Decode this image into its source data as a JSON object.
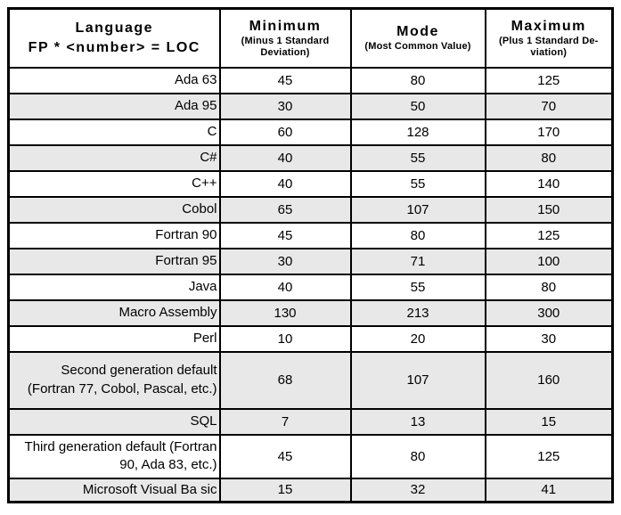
{
  "chart_data": {
    "type": "table",
    "columns": [
      {
        "title": "Language",
        "subtitle": "FP * <number> = LOC"
      },
      {
        "title": "Minimum",
        "subtitle": "(Minus 1 Standard Deviation)"
      },
      {
        "title": "Mode",
        "subtitle": "(Most Common Value)"
      },
      {
        "title": "Maximum",
        "subtitle": "(Plus 1 Standard De-viation)"
      }
    ],
    "rows": [
      {
        "language": "Ada 63",
        "minimum": "45",
        "mode": "80",
        "maximum": "125",
        "shaded": false
      },
      {
        "language": "Ada 95",
        "minimum": "30",
        "mode": "50",
        "maximum": "70",
        "shaded": true
      },
      {
        "language": "C",
        "minimum": "60",
        "mode": "128",
        "maximum": "170",
        "shaded": false
      },
      {
        "language": "C#",
        "minimum": "40",
        "mode": "55",
        "maximum": "80",
        "shaded": true
      },
      {
        "language": "C++",
        "minimum": "40",
        "mode": "55",
        "maximum": "140",
        "shaded": false
      },
      {
        "language": "Cobol",
        "minimum": "65",
        "mode": "107",
        "maximum": "150",
        "shaded": true
      },
      {
        "language": "Fortran 90",
        "minimum": "45",
        "mode": "80",
        "maximum": "125",
        "shaded": false
      },
      {
        "language": "Fortran 95",
        "minimum": "30",
        "mode": "71",
        "maximum": "100",
        "shaded": true
      },
      {
        "language": "Java",
        "minimum": "40",
        "mode": "55",
        "maximum": "80",
        "shaded": false
      },
      {
        "language": "Macro Assembly",
        "minimum": "130",
        "mode": "213",
        "maximum": "300",
        "shaded": true
      },
      {
        "language": "Perl",
        "minimum": "10",
        "mode": "20",
        "maximum": "30",
        "shaded": false
      },
      {
        "language": "Second generation default (Fortran 77, Cobol, Pascal, etc.)",
        "minimum": "68",
        "mode": "107",
        "maximum": "160",
        "shaded": true
      },
      {
        "language": "SQL",
        "minimum": "7",
        "mode": "13",
        "maximum": "15",
        "shaded": true
      },
      {
        "language": "Third generation default (Fortran 90, Ada 83, etc.)",
        "minimum": "45",
        "mode": "80",
        "maximum": "125",
        "shaded": false
      },
      {
        "language": "Microsoft Visual Ba sic",
        "minimum": "15",
        "mode": "32",
        "maximum": "41",
        "shaded": true
      }
    ]
  },
  "colors": {
    "row_shade": "#e8e8e8",
    "border": "#000000",
    "background": "#ffffff",
    "text": "#000000"
  }
}
